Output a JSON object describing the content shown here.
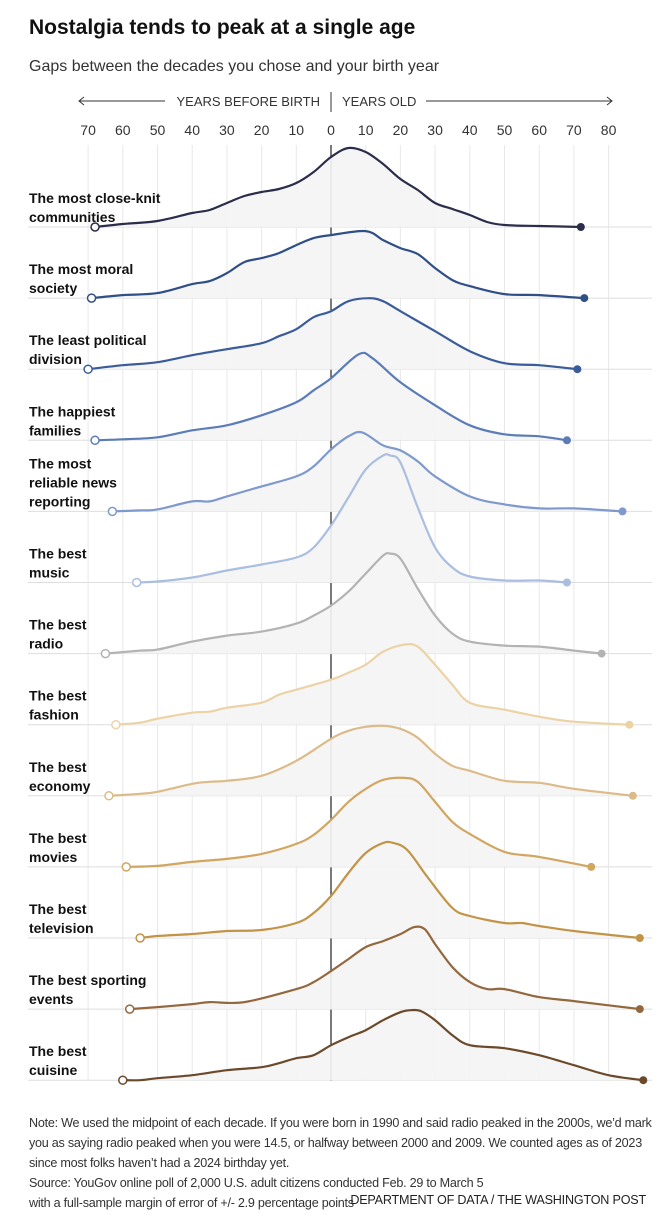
{
  "header": {
    "title": "Nostalgia tends to peak at a single age",
    "subtitle": "Gaps between the decades you chose and your birth year"
  },
  "chart_data": {
    "type": "ridgeline",
    "axis_left_label": "YEARS BEFORE BIRTH",
    "axis_right_label": "YEARS OLD",
    "xlim": [
      -70,
      80
    ],
    "x_ticks": [
      -70,
      -60,
      -50,
      -40,
      -30,
      -20,
      -10,
      0,
      10,
      20,
      30,
      40,
      50,
      60,
      70,
      80
    ],
    "x_tick_labels": [
      "70",
      "60",
      "50",
      "40",
      "30",
      "20",
      "10",
      "0",
      "10",
      "20",
      "30",
      "40",
      "50",
      "60",
      "70",
      "80"
    ],
    "grid": true,
    "y_unit": "relative density",
    "series": [
      {
        "name": "The most close-knit communities",
        "label_lines": [
          "The most close-knit",
          "communities"
        ],
        "color": "#2b2d4a",
        "points": [
          [
            -68,
            0
          ],
          [
            -60,
            3
          ],
          [
            -50,
            6
          ],
          [
            -40,
            14
          ],
          [
            -35,
            17
          ],
          [
            -30,
            24
          ],
          [
            -25,
            31
          ],
          [
            -20,
            35
          ],
          [
            -15,
            38
          ],
          [
            -10,
            44
          ],
          [
            -5,
            55
          ],
          [
            0,
            70
          ],
          [
            5,
            79
          ],
          [
            10,
            75
          ],
          [
            15,
            63
          ],
          [
            20,
            48
          ],
          [
            25,
            37
          ],
          [
            30,
            24
          ],
          [
            35,
            18
          ],
          [
            40,
            12
          ],
          [
            45,
            5
          ],
          [
            50,
            2
          ],
          [
            60,
            1
          ],
          [
            72,
            0
          ]
        ]
      },
      {
        "name": "The most moral society",
        "label_lines": [
          "The most moral",
          "society"
        ],
        "color": "#2f4f86",
        "points": [
          [
            -69,
            0
          ],
          [
            -60,
            3
          ],
          [
            -50,
            5
          ],
          [
            -40,
            14
          ],
          [
            -35,
            17
          ],
          [
            -30,
            25
          ],
          [
            -25,
            36
          ],
          [
            -20,
            40
          ],
          [
            -15,
            45
          ],
          [
            -10,
            53
          ],
          [
            -5,
            60
          ],
          [
            0,
            63
          ],
          [
            10,
            67
          ],
          [
            15,
            58
          ],
          [
            20,
            50
          ],
          [
            25,
            44
          ],
          [
            30,
            30
          ],
          [
            35,
            18
          ],
          [
            40,
            12
          ],
          [
            50,
            4
          ],
          [
            60,
            3
          ],
          [
            73,
            0
          ]
        ]
      },
      {
        "name": "The least political division",
        "label_lines": [
          "The least political",
          "division"
        ],
        "color": "#3a5c9a",
        "points": [
          [
            -70,
            0
          ],
          [
            -60,
            4
          ],
          [
            -50,
            7
          ],
          [
            -40,
            14
          ],
          [
            -30,
            20
          ],
          [
            -20,
            26
          ],
          [
            -15,
            33
          ],
          [
            -10,
            40
          ],
          [
            -5,
            52
          ],
          [
            0,
            58
          ],
          [
            5,
            68
          ],
          [
            11,
            71
          ],
          [
            15,
            68
          ],
          [
            20,
            58
          ],
          [
            30,
            38
          ],
          [
            40,
            18
          ],
          [
            50,
            6
          ],
          [
            60,
            4
          ],
          [
            71,
            0
          ]
        ]
      },
      {
        "name": "The happiest families",
        "label_lines": [
          "The happiest",
          "families"
        ],
        "color": "#5b7cb8",
        "points": [
          [
            -68,
            0
          ],
          [
            -60,
            1
          ],
          [
            -50,
            3
          ],
          [
            -40,
            10
          ],
          [
            -30,
            15
          ],
          [
            -20,
            25
          ],
          [
            -10,
            38
          ],
          [
            -5,
            50
          ],
          [
            0,
            62
          ],
          [
            8,
            86
          ],
          [
            12,
            82
          ],
          [
            20,
            58
          ],
          [
            30,
            35
          ],
          [
            40,
            15
          ],
          [
            50,
            6
          ],
          [
            60,
            4
          ],
          [
            68,
            0
          ]
        ]
      },
      {
        "name": "The most reliable news reporting",
        "label_lines": [
          "The most",
          "reliable news",
          "reporting"
        ],
        "color": "#7e99cc",
        "points": [
          [
            -63,
            0
          ],
          [
            -55,
            1
          ],
          [
            -50,
            2
          ],
          [
            -40,
            10
          ],
          [
            -35,
            10
          ],
          [
            -30,
            15
          ],
          [
            -20,
            25
          ],
          [
            -10,
            35
          ],
          [
            -5,
            45
          ],
          [
            0,
            62
          ],
          [
            5,
            75
          ],
          [
            9,
            79
          ],
          [
            15,
            66
          ],
          [
            20,
            61
          ],
          [
            25,
            50
          ],
          [
            30,
            35
          ],
          [
            40,
            15
          ],
          [
            50,
            7
          ],
          [
            60,
            3
          ],
          [
            70,
            3
          ],
          [
            84,
            0
          ]
        ]
      },
      {
        "name": "The best music",
        "label_lines": [
          "The best",
          "music"
        ],
        "color": "#a9bee0",
        "points": [
          [
            -56,
            0
          ],
          [
            -50,
            1
          ],
          [
            -40,
            5
          ],
          [
            -30,
            12
          ],
          [
            -20,
            18
          ],
          [
            -10,
            25
          ],
          [
            -5,
            35
          ],
          [
            0,
            57
          ],
          [
            5,
            85
          ],
          [
            10,
            113
          ],
          [
            15,
            127
          ],
          [
            17,
            127
          ],
          [
            20,
            120
          ],
          [
            25,
            75
          ],
          [
            30,
            35
          ],
          [
            35,
            15
          ],
          [
            40,
            6
          ],
          [
            50,
            2
          ],
          [
            60,
            2
          ],
          [
            68,
            0
          ]
        ]
      },
      {
        "name": "The best radio",
        "label_lines": [
          "The best",
          "radio"
        ],
        "color": "#b3b3b3",
        "points": [
          [
            -65,
            0
          ],
          [
            -55,
            3
          ],
          [
            -50,
            4
          ],
          [
            -40,
            12
          ],
          [
            -30,
            18
          ],
          [
            -20,
            22
          ],
          [
            -10,
            30
          ],
          [
            -5,
            38
          ],
          [
            0,
            48
          ],
          [
            5,
            62
          ],
          [
            10,
            80
          ],
          [
            15,
            98
          ],
          [
            17,
            100
          ],
          [
            20,
            95
          ],
          [
            25,
            65
          ],
          [
            30,
            38
          ],
          [
            35,
            20
          ],
          [
            40,
            12
          ],
          [
            50,
            8
          ],
          [
            60,
            7
          ],
          [
            70,
            3
          ],
          [
            78,
            0
          ]
        ]
      },
      {
        "name": "The best fashion",
        "label_lines": [
          "The best",
          "fashion"
        ],
        "color": "#ecd3a6",
        "points": [
          [
            -62,
            0
          ],
          [
            -55,
            2
          ],
          [
            -50,
            6
          ],
          [
            -40,
            12
          ],
          [
            -35,
            13
          ],
          [
            -30,
            17
          ],
          [
            -20,
            22
          ],
          [
            -15,
            30
          ],
          [
            -10,
            35
          ],
          [
            0,
            45
          ],
          [
            5,
            52
          ],
          [
            10,
            60
          ],
          [
            15,
            73
          ],
          [
            21,
            80
          ],
          [
            25,
            78
          ],
          [
            30,
            60
          ],
          [
            35,
            40
          ],
          [
            40,
            22
          ],
          [
            50,
            15
          ],
          [
            60,
            8
          ],
          [
            70,
            3
          ],
          [
            86,
            0
          ]
        ]
      },
      {
        "name": "The best economy",
        "label_lines": [
          "The best",
          "economy"
        ],
        "color": "#dcbb8a",
        "points": [
          [
            -64,
            0
          ],
          [
            -55,
            2
          ],
          [
            -50,
            4
          ],
          [
            -40,
            12
          ],
          [
            -35,
            14
          ],
          [
            -30,
            15
          ],
          [
            -20,
            20
          ],
          [
            -10,
            35
          ],
          [
            0,
            57
          ],
          [
            5,
            65
          ],
          [
            10,
            69
          ],
          [
            15,
            70
          ],
          [
            20,
            67
          ],
          [
            25,
            58
          ],
          [
            30,
            42
          ],
          [
            35,
            30
          ],
          [
            40,
            25
          ],
          [
            50,
            15
          ],
          [
            60,
            13
          ],
          [
            70,
            7
          ],
          [
            87,
            0
          ]
        ]
      },
      {
        "name": "The best movies",
        "label_lines": [
          "The best",
          "movies"
        ],
        "color": "#d1a660",
        "points": [
          [
            -59,
            0
          ],
          [
            -50,
            1
          ],
          [
            -40,
            5
          ],
          [
            -30,
            8
          ],
          [
            -20,
            13
          ],
          [
            -10,
            23
          ],
          [
            -5,
            32
          ],
          [
            0,
            47
          ],
          [
            5,
            65
          ],
          [
            10,
            78
          ],
          [
            15,
            87
          ],
          [
            21,
            89
          ],
          [
            25,
            85
          ],
          [
            30,
            65
          ],
          [
            35,
            45
          ],
          [
            40,
            33
          ],
          [
            50,
            15
          ],
          [
            60,
            10
          ],
          [
            75,
            0
          ]
        ]
      },
      {
        "name": "The best television",
        "label_lines": [
          "The best",
          "television"
        ],
        "color": "#c19448",
        "points": [
          [
            -55,
            0
          ],
          [
            -50,
            2
          ],
          [
            -40,
            4
          ],
          [
            -30,
            7
          ],
          [
            -20,
            8
          ],
          [
            -10,
            15
          ],
          [
            -5,
            25
          ],
          [
            0,
            42
          ],
          [
            5,
            65
          ],
          [
            10,
            85
          ],
          [
            15,
            95
          ],
          [
            18,
            95
          ],
          [
            22,
            88
          ],
          [
            28,
            60
          ],
          [
            35,
            30
          ],
          [
            40,
            22
          ],
          [
            50,
            15
          ],
          [
            55,
            15
          ],
          [
            60,
            12
          ],
          [
            70,
            7
          ],
          [
            89,
            0
          ]
        ]
      },
      {
        "name": "The best sporting events",
        "label_lines": [
          "The best sporting",
          "events"
        ],
        "color": "#93683f",
        "points": [
          [
            -58,
            0
          ],
          [
            -50,
            2
          ],
          [
            -40,
            5
          ],
          [
            -35,
            7
          ],
          [
            -25,
            7
          ],
          [
            -10,
            20
          ],
          [
            -5,
            27
          ],
          [
            0,
            38
          ],
          [
            5,
            50
          ],
          [
            10,
            62
          ],
          [
            15,
            68
          ],
          [
            20,
            75
          ],
          [
            24,
            82
          ],
          [
            27,
            80
          ],
          [
            30,
            65
          ],
          [
            35,
            42
          ],
          [
            40,
            27
          ],
          [
            45,
            20
          ],
          [
            50,
            20
          ],
          [
            60,
            12
          ],
          [
            70,
            8
          ],
          [
            89,
            0
          ]
        ]
      },
      {
        "name": "The best cuisine",
        "label_lines": [
          "The best",
          "cuisine"
        ],
        "color": "#6b4a2b",
        "points": [
          [
            -60,
            0
          ],
          [
            -55,
            0
          ],
          [
            -50,
            2
          ],
          [
            -40,
            5
          ],
          [
            -30,
            10
          ],
          [
            -20,
            13
          ],
          [
            -15,
            17
          ],
          [
            -10,
            22
          ],
          [
            -5,
            25
          ],
          [
            0,
            35
          ],
          [
            5,
            43
          ],
          [
            10,
            50
          ],
          [
            15,
            60
          ],
          [
            20,
            68
          ],
          [
            23,
            70
          ],
          [
            26,
            69
          ],
          [
            30,
            60
          ],
          [
            35,
            45
          ],
          [
            40,
            35
          ],
          [
            50,
            32
          ],
          [
            60,
            25
          ],
          [
            70,
            15
          ],
          [
            80,
            5
          ],
          [
            90,
            0
          ]
        ]
      }
    ]
  },
  "footer": {
    "note": "Note: We used the midpoint of each decade. If you were born in 1990 and said radio peaked in the 2000s, we’d mark you as saying radio peaked when you were 14.5, or halfway between 2000 and 2009. We counted ages as of 2023 since most folks haven’t had a 2024 birthday yet.",
    "source": "Source: YouGov online poll of 2,000 U.S. adult citizens conducted Feb. 29 to March 5 with a full-sample margin of error of +/- 2.9 percentage points",
    "credit": "DEPARTMENT OF DATA / THE WASHINGTON POST"
  }
}
